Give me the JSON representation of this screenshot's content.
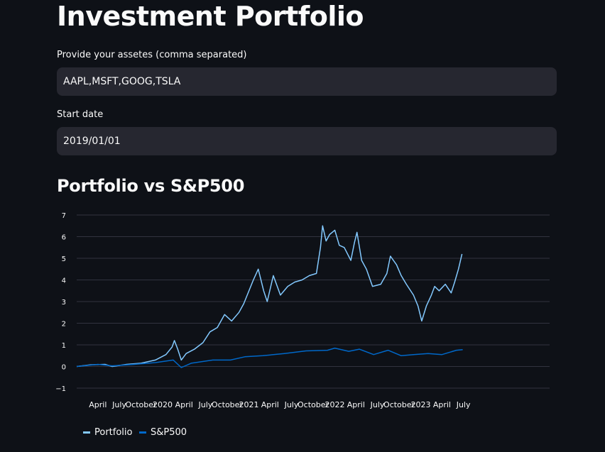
{
  "page": {
    "title": "Investment Portfolio",
    "assets_label": "Provide your assetes (comma separated)",
    "assets_value": "AAPL,MSFT,GOOG,TSLA",
    "start_label": "Start date",
    "start_value": "2019/01/01",
    "chart_heading": "Portfolio vs S&P500"
  },
  "colors": {
    "background": "#0e1117",
    "input_bg": "#262730",
    "portfolio": "#83c9ff",
    "sp500": "#0068c9",
    "grid": "#31333f",
    "tick_text": "#fafafa"
  },
  "chart_data": {
    "type": "line",
    "title": "Portfolio vs S&P500",
    "ylim": [
      -1,
      7
    ],
    "y_ticks": [
      "7",
      "6",
      "5",
      "4",
      "3",
      "2",
      "1",
      "0",
      "−1"
    ],
    "x_range": [
      "2019-01-01",
      "2024-07-01"
    ],
    "x_ticks": [
      {
        "label": "April",
        "date": "2019-04-01"
      },
      {
        "label": "July",
        "date": "2019-07-01"
      },
      {
        "label": "October",
        "date": "2019-10-01"
      },
      {
        "label": "2020",
        "date": "2020-01-01"
      },
      {
        "label": "April",
        "date": "2020-04-01"
      },
      {
        "label": "July",
        "date": "2020-07-01"
      },
      {
        "label": "October",
        "date": "2020-10-01"
      },
      {
        "label": "2021",
        "date": "2021-01-01"
      },
      {
        "label": "April",
        "date": "2021-04-01"
      },
      {
        "label": "July",
        "date": "2021-07-01"
      },
      {
        "label": "October",
        "date": "2021-10-01"
      },
      {
        "label": "2022",
        "date": "2022-01-01"
      },
      {
        "label": "April",
        "date": "2022-04-01"
      },
      {
        "label": "July",
        "date": "2022-07-01"
      },
      {
        "label": "October",
        "date": "2022-10-01"
      },
      {
        "label": "2023",
        "date": "2023-01-01"
      },
      {
        "label": "April",
        "date": "2023-04-01"
      },
      {
        "label": "July",
        "date": "2023-07-01"
      }
    ],
    "grid": true,
    "legend_position": "bottom-left",
    "series": [
      {
        "name": "Portfolio",
        "points": [
          [
            "2019-01-01",
            0.0
          ],
          [
            "2019-03-01",
            0.08
          ],
          [
            "2019-05-01",
            0.1
          ],
          [
            "2019-06-01",
            0.0
          ],
          [
            "2019-08-01",
            0.1
          ],
          [
            "2019-10-01",
            0.15
          ],
          [
            "2019-12-01",
            0.3
          ],
          [
            "2020-01-15",
            0.55
          ],
          [
            "2020-02-10",
            0.9
          ],
          [
            "2020-02-20",
            1.2
          ],
          [
            "2020-03-05",
            0.8
          ],
          [
            "2020-03-20",
            0.3
          ],
          [
            "2020-04-10",
            0.6
          ],
          [
            "2020-05-15",
            0.8
          ],
          [
            "2020-06-20",
            1.1
          ],
          [
            "2020-07-20",
            1.6
          ],
          [
            "2020-08-20",
            1.8
          ],
          [
            "2020-09-20",
            2.4
          ],
          [
            "2020-10-20",
            2.1
          ],
          [
            "2020-11-20",
            2.5
          ],
          [
            "2020-12-10",
            2.9
          ],
          [
            "2021-01-20",
            4.0
          ],
          [
            "2021-02-10",
            4.5
          ],
          [
            "2021-03-05",
            3.5
          ],
          [
            "2021-03-20",
            3.0
          ],
          [
            "2021-04-15",
            4.2
          ],
          [
            "2021-05-15",
            3.3
          ],
          [
            "2021-06-15",
            3.7
          ],
          [
            "2021-07-15",
            3.9
          ],
          [
            "2021-08-15",
            4.0
          ],
          [
            "2021-09-15",
            4.2
          ],
          [
            "2021-10-15",
            4.3
          ],
          [
            "2021-11-01",
            5.5
          ],
          [
            "2021-11-10",
            6.5
          ],
          [
            "2021-11-25",
            5.8
          ],
          [
            "2021-12-10",
            6.1
          ],
          [
            "2022-01-01",
            6.3
          ],
          [
            "2022-01-20",
            5.6
          ],
          [
            "2022-02-10",
            5.5
          ],
          [
            "2022-03-10",
            4.9
          ],
          [
            "2022-03-25",
            5.7
          ],
          [
            "2022-04-05",
            6.2
          ],
          [
            "2022-04-25",
            4.9
          ],
          [
            "2022-05-15",
            4.5
          ],
          [
            "2022-06-10",
            3.7
          ],
          [
            "2022-07-15",
            3.8
          ],
          [
            "2022-08-10",
            4.3
          ],
          [
            "2022-08-25",
            5.1
          ],
          [
            "2022-09-20",
            4.7
          ],
          [
            "2022-10-10",
            4.2
          ],
          [
            "2022-11-01",
            3.8
          ],
          [
            "2022-12-01",
            3.3
          ],
          [
            "2022-12-20",
            2.8
          ],
          [
            "2023-01-05",
            2.1
          ],
          [
            "2023-01-25",
            2.8
          ],
          [
            "2023-02-15",
            3.3
          ],
          [
            "2023-03-01",
            3.7
          ],
          [
            "2023-03-20",
            3.5
          ],
          [
            "2023-04-15",
            3.8
          ],
          [
            "2023-05-10",
            3.4
          ],
          [
            "2023-05-25",
            3.9
          ],
          [
            "2023-06-10",
            4.5
          ],
          [
            "2023-06-25",
            5.2
          ]
        ]
      },
      {
        "name": "S&P500",
        "points": [
          [
            "2019-01-01",
            0.0
          ],
          [
            "2019-04-01",
            0.1
          ],
          [
            "2019-06-01",
            0.03
          ],
          [
            "2019-09-01",
            0.1
          ],
          [
            "2019-12-01",
            0.18
          ],
          [
            "2020-02-15",
            0.3
          ],
          [
            "2020-03-20",
            -0.05
          ],
          [
            "2020-05-01",
            0.15
          ],
          [
            "2020-08-01",
            0.3
          ],
          [
            "2020-10-15",
            0.3
          ],
          [
            "2020-12-15",
            0.45
          ],
          [
            "2021-03-01",
            0.5
          ],
          [
            "2021-06-01",
            0.6
          ],
          [
            "2021-09-01",
            0.72
          ],
          [
            "2021-12-01",
            0.75
          ],
          [
            "2022-01-01",
            0.85
          ],
          [
            "2022-03-01",
            0.7
          ],
          [
            "2022-04-15",
            0.8
          ],
          [
            "2022-06-15",
            0.55
          ],
          [
            "2022-08-15",
            0.75
          ],
          [
            "2022-10-10",
            0.5
          ],
          [
            "2022-12-01",
            0.55
          ],
          [
            "2023-02-01",
            0.6
          ],
          [
            "2023-04-01",
            0.55
          ],
          [
            "2023-06-01",
            0.75
          ],
          [
            "2023-06-28",
            0.78
          ]
        ]
      }
    ]
  }
}
